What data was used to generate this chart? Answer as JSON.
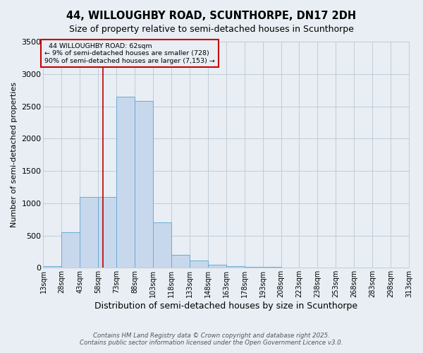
{
  "title": "44, WILLOUGHBY ROAD, SCUNTHORPE, DN17 2DH",
  "subtitle": "Size of property relative to semi-detached houses in Scunthorpe",
  "xlabel": "Distribution of semi-detached houses by size in Scunthorpe",
  "ylabel": "Number of semi-detached properties",
  "bin_edges": [
    13,
    28,
    43,
    58,
    73,
    88,
    103,
    118,
    133,
    148,
    163,
    178,
    193,
    208,
    223,
    238,
    253,
    268,
    283,
    298,
    313
  ],
  "bar_heights": [
    30,
    550,
    1100,
    1100,
    2650,
    2580,
    700,
    200,
    110,
    50,
    30,
    15,
    10,
    2,
    1,
    1,
    0,
    0,
    0,
    0
  ],
  "bar_color": "#c8d8ec",
  "bar_edge_color": "#6aaad4",
  "grid_color": "#c0ccd8",
  "background_color": "#e8eef4",
  "property_size": 62,
  "red_line_color": "#bb0000",
  "annotation_text": "  44 WILLOUGHBY ROAD: 62sqm  \n← 9% of semi-detached houses are smaller (728)\n90% of semi-detached houses are larger (7,153) →",
  "annotation_box_color": "#cc0000",
  "ylim": [
    0,
    3500
  ],
  "tick_labels": [
    "13sqm",
    "28sqm",
    "43sqm",
    "58sqm",
    "73sqm",
    "88sqm",
    "103sqm",
    "118sqm",
    "133sqm",
    "148sqm",
    "163sqm",
    "178sqm",
    "193sqm",
    "208sqm",
    "223sqm",
    "238sqm",
    "253sqm",
    "268sqm",
    "283sqm",
    "298sqm",
    "313sqm"
  ],
  "footer_line1": "Contains HM Land Registry data © Crown copyright and database right 2025.",
  "footer_line2": "Contains public sector information licensed under the Open Government Licence v3.0.",
  "title_fontsize": 10.5,
  "subtitle_fontsize": 9,
  "tick_fontsize": 7,
  "ylabel_fontsize": 8,
  "xlabel_fontsize": 9
}
